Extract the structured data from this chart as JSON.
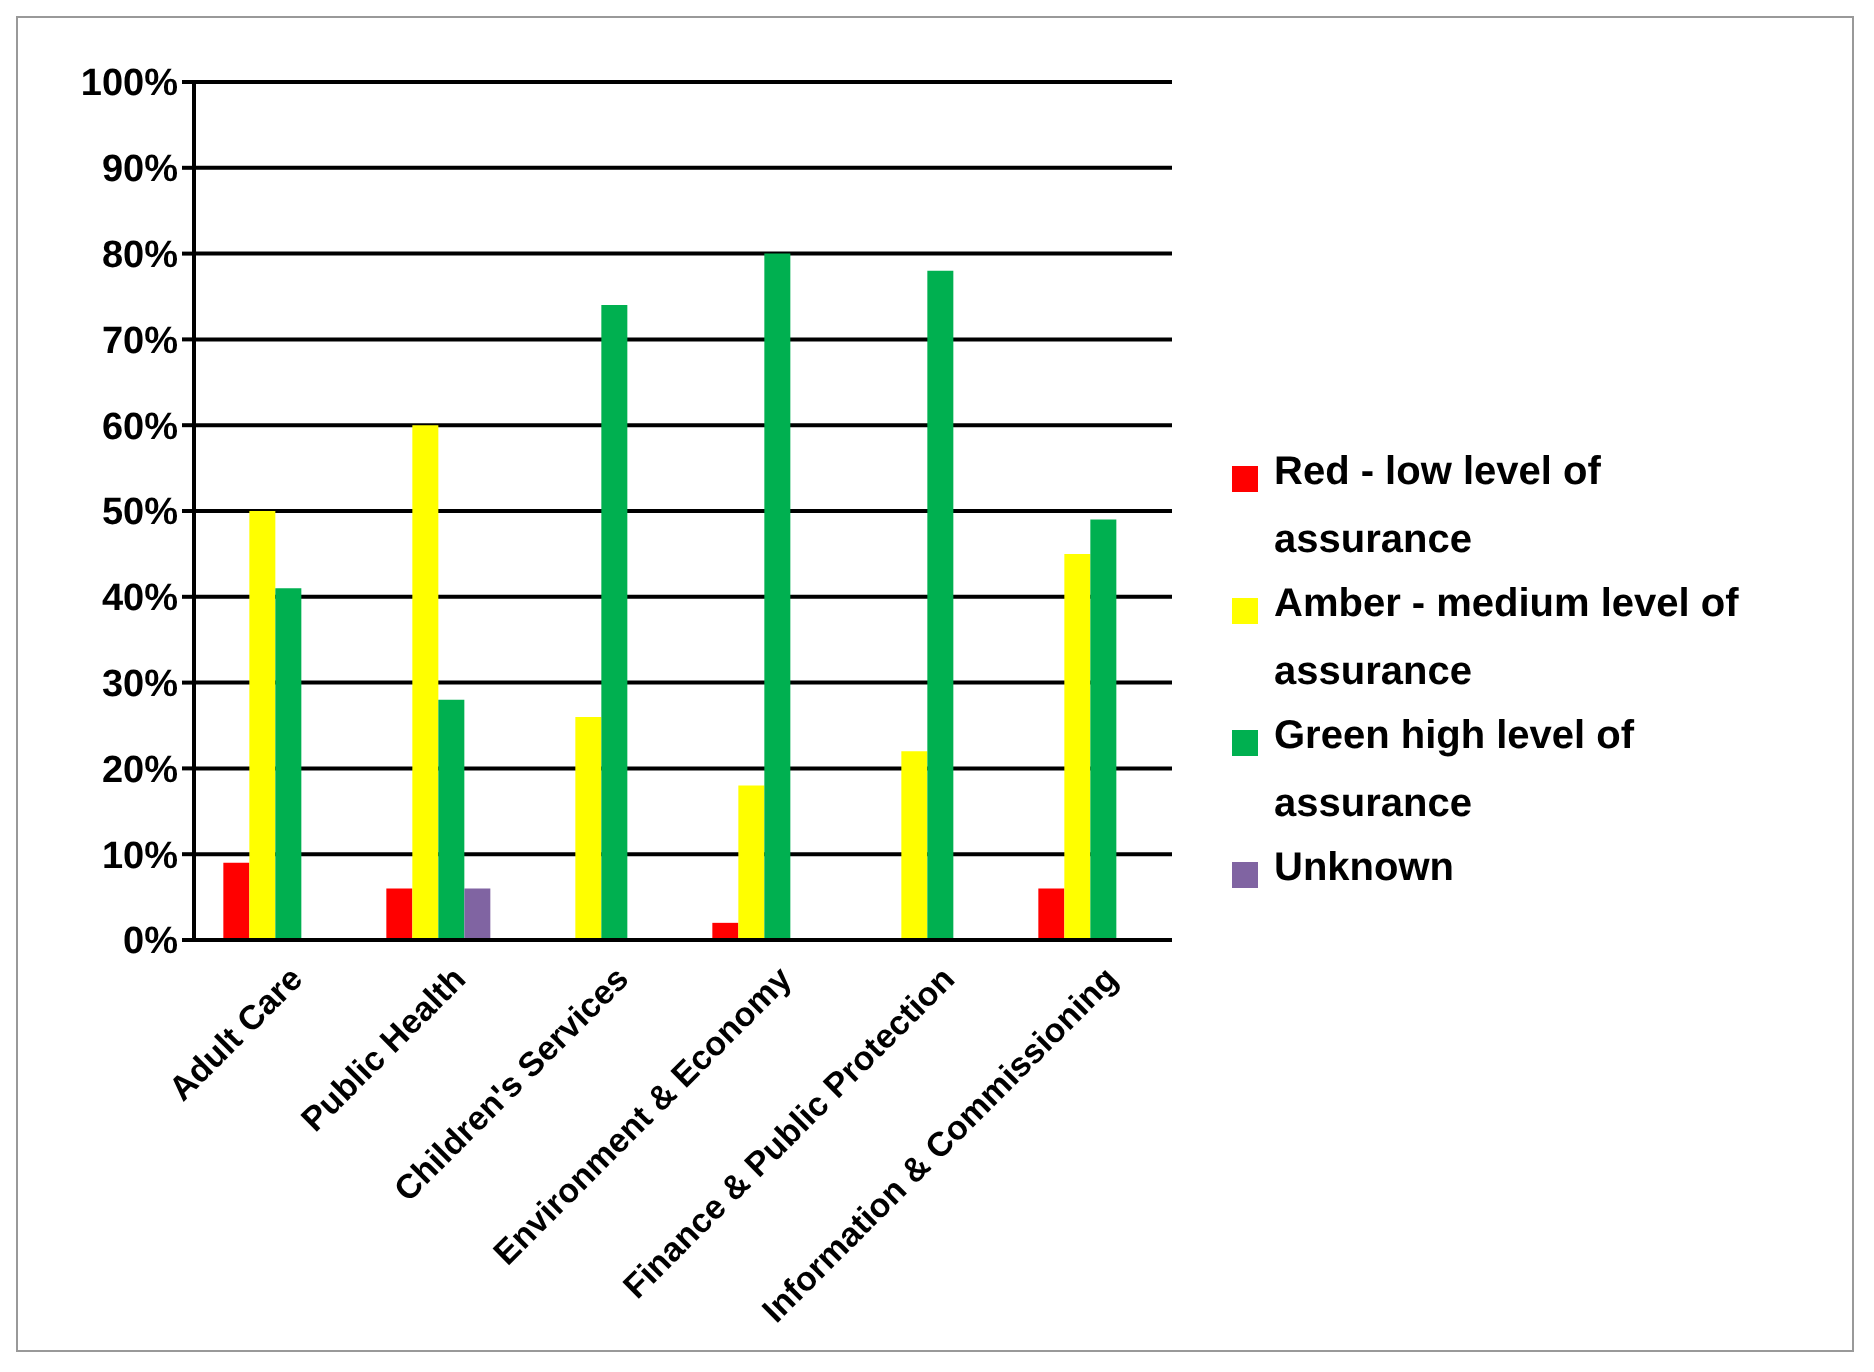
{
  "chart_data": {
    "type": "bar",
    "categories": [
      "Adult Care",
      "Public Health",
      "Children's Services",
      "Environment & Economy",
      "Finance & Public Protection",
      "Information & Commissioning"
    ],
    "series": [
      {
        "name": "Red - low level of assurance",
        "color": "#ff0000",
        "values": [
          9,
          6,
          0,
          2,
          0,
          6
        ]
      },
      {
        "name": "Amber - medium level of assurance",
        "color": "#ffff00",
        "values": [
          50,
          60,
          26,
          18,
          22,
          45
        ]
      },
      {
        "name": "Green high level of assurance",
        "color": "#00b050",
        "values": [
          41,
          28,
          74,
          80,
          78,
          49
        ]
      },
      {
        "name": "Unknown",
        "color": "#8064a2",
        "values": [
          0,
          6,
          0,
          0,
          0,
          0
        ]
      }
    ],
    "ylim": [
      0,
      100
    ],
    "yticks": [
      {
        "value": 0,
        "label": "0%"
      },
      {
        "value": 10,
        "label": "10%"
      },
      {
        "value": 20,
        "label": "20%"
      },
      {
        "value": 30,
        "label": "30%"
      },
      {
        "value": 40,
        "label": "40%"
      },
      {
        "value": 50,
        "label": "50%"
      },
      {
        "value": 60,
        "label": "60%"
      },
      {
        "value": 70,
        "label": "70%"
      },
      {
        "value": 80,
        "label": "80%"
      },
      {
        "value": 90,
        "label": "90%"
      },
      {
        "value": 100,
        "label": "100%"
      }
    ],
    "grid": "y",
    "legend": "right"
  }
}
